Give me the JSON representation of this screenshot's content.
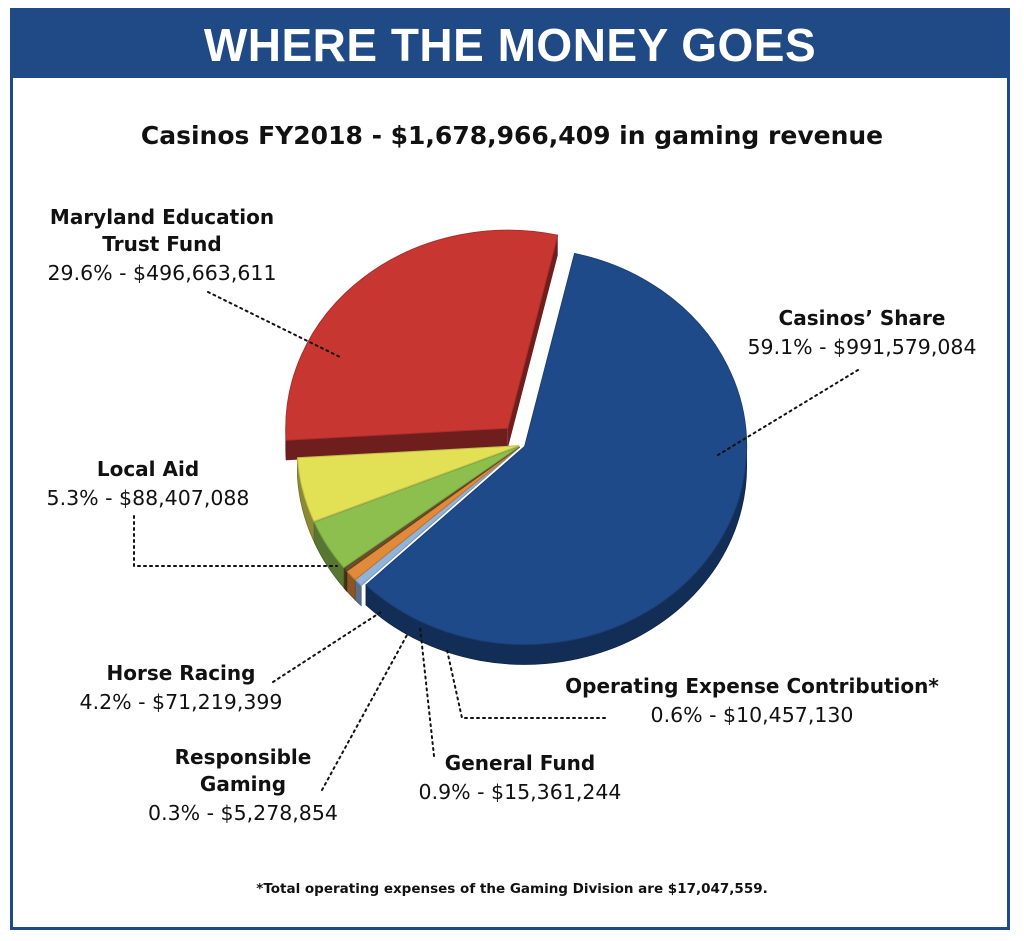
{
  "banner": {
    "title": "WHERE THE MONEY GOES"
  },
  "chart_data": {
    "type": "pie",
    "title": "Casinos FY2018 - $1,678,966,409 in gaming revenue",
    "slices": [
      {
        "name": "Casinos’ Share",
        "percent": 59.1,
        "value": 991579084,
        "value_label": "59.1% - $991,579,084",
        "color": "#1f4a8a",
        "exploded": false
      },
      {
        "name": "Operating Expense Contribution*",
        "percent": 0.6,
        "value": 10457130,
        "value_label": "0.6% - $10,457,130",
        "color": "#8fb3d9",
        "exploded": false
      },
      {
        "name": "General Fund",
        "percent": 0.9,
        "value": 15361244,
        "value_label": "0.9% - $15,361,244",
        "color": "#e08a3a",
        "exploded": false
      },
      {
        "name": "Responsible Gaming",
        "percent": 0.3,
        "value": 5278854,
        "value_label": "0.3% - $5,278,854",
        "color": "#6a4e2a",
        "exploded": false
      },
      {
        "name": "Horse Racing",
        "percent": 4.2,
        "value": 71219399,
        "value_label": "4.2% - $71,219,399",
        "color": "#8dbf4f",
        "exploded": false
      },
      {
        "name": "Local Aid",
        "percent": 5.3,
        "value": 88407088,
        "value_label": "5.3% - $88,407,088",
        "color": "#e2e055",
        "exploded": false
      },
      {
        "name": "Maryland Education Trust Fund",
        "percent": 29.6,
        "value": 496663611,
        "value_label": "29.6% - $496,663,611",
        "color": "#c83632",
        "exploded": true
      }
    ],
    "labels": [
      {
        "slice": 0,
        "lines": [
          "Casinos’ Share"
        ]
      },
      {
        "slice": 1,
        "lines": [
          "Operating Expense Contribution*"
        ]
      },
      {
        "slice": 2,
        "lines": [
          "General Fund"
        ]
      },
      {
        "slice": 3,
        "lines": [
          "Responsible",
          "Gaming"
        ]
      },
      {
        "slice": 4,
        "lines": [
          "Horse Racing"
        ]
      },
      {
        "slice": 5,
        "lines": [
          "Local Aid"
        ]
      },
      {
        "slice": 6,
        "lines": [
          "Maryland Education",
          "Trust Fund"
        ]
      }
    ]
  },
  "footnote": "*Total operating expenses of the Gaming Division are $17,047,559."
}
